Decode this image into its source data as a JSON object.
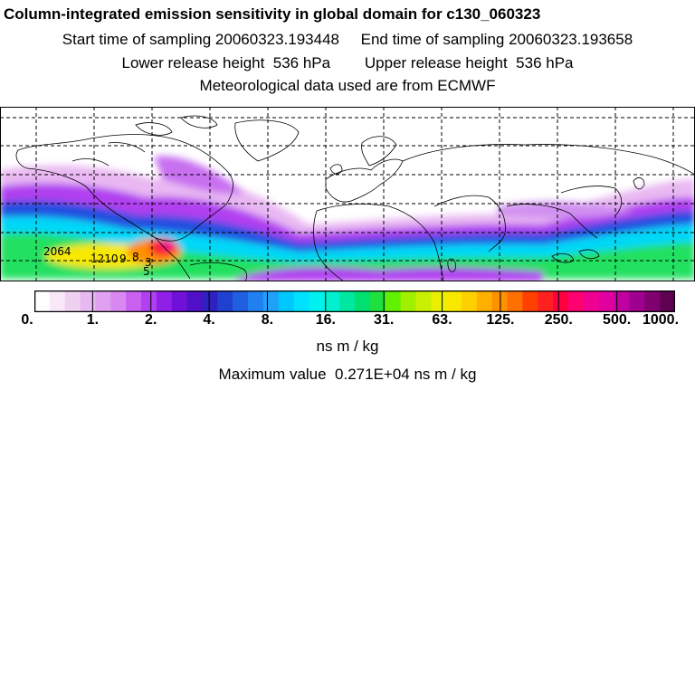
{
  "title": "Column-integrated emission sensitivity in global domain for c130_060323",
  "sampling": "Start time of sampling 20060323.193448     End time of sampling 20060323.193658",
  "release": "Lower release height  536 hPa        Upper release height  536 hPa",
  "met": "Meteorological data used are from ECMWF",
  "colorbar": {
    "ticks": [
      "0.",
      "1.",
      "2.",
      "4.",
      "8.",
      "16.",
      "31.",
      "63.",
      "125.",
      "250.",
      "500.",
      "1000."
    ],
    "colors": [
      "#ffffff",
      "#f8e8f8",
      "#f0d0f0",
      "#e8b8f0",
      "#e0a0f0",
      "#d888f0",
      "#c860f0",
      "#b040f0",
      "#9020e8",
      "#7010d8",
      "#5010c8",
      "#3020c0",
      "#2040d0",
      "#2060e0",
      "#2080f0",
      "#20a0f8",
      "#00c8ff",
      "#00e0ff",
      "#00f0f0",
      "#00f0d0",
      "#00e8a0",
      "#00e070",
      "#20e040",
      "#60f000",
      "#a0f000",
      "#c8f000",
      "#e8f000",
      "#f8e800",
      "#ffd000",
      "#ffb000",
      "#ff9000",
      "#ff7000",
      "#ff4000",
      "#ff2020",
      "#ff0040",
      "#ff0070",
      "#f00090",
      "#e000a0",
      "#c000a0",
      "#a00090",
      "#800070",
      "#600050"
    ],
    "units": "ns m / kg"
  },
  "maxvalue": "Maximum value  0.271E+04 ns m / kg",
  "map": {
    "labels": [
      "2064",
      "1210",
      "9",
      "8",
      "3",
      "5"
    ]
  }
}
